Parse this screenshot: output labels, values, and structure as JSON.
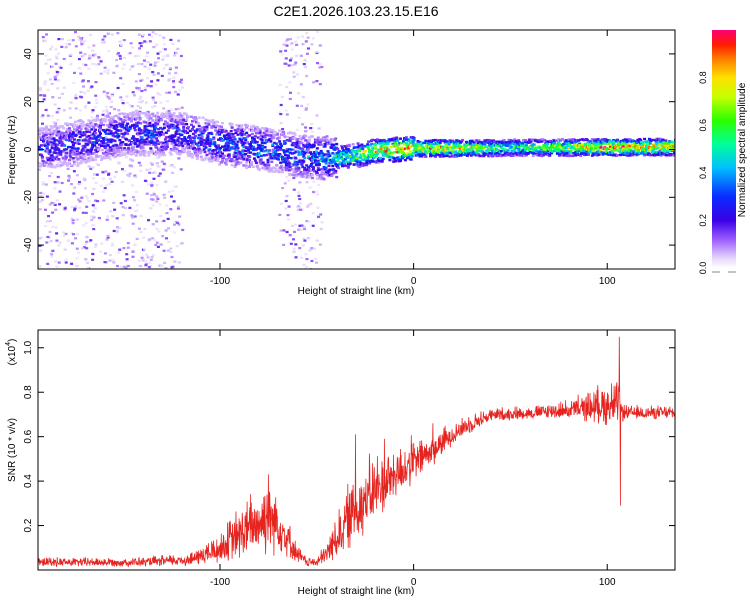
{
  "title": "C2E1.2026.103.23.15.E16",
  "colors": {
    "snr_line": "#e52420",
    "axis": "#000000"
  },
  "chart_data": [
    {
      "type": "heatmap",
      "name": "spectrogram",
      "xlabel": "Height of straight line (km)",
      "ylabel": "Frequency (Hz)",
      "xlim": [
        -194,
        135
      ],
      "ylim": [
        -50,
        50
      ],
      "x_ticks": [
        -100,
        0,
        100
      ],
      "x_tick_labels": [
        "-100",
        "0",
        "100"
      ],
      "y_ticks": [
        -40,
        -20,
        0,
        20,
        40
      ],
      "y_tick_labels": [
        "-40",
        "-20",
        "0",
        "20",
        "40"
      ],
      "colorbar": {
        "label": "Normalized spectral amplitude",
        "range": [
          0,
          1
        ],
        "ticks": [
          0.0,
          0.2,
          0.4,
          0.6,
          0.8
        ],
        "tick_labels": [
          "0.0",
          "0.2",
          "0.4",
          "0.6",
          "0.8"
        ]
      },
      "trend": {
        "x": [
          -190,
          -150,
          -120,
          -100,
          -80,
          -60,
          -50,
          -40,
          -30,
          -20,
          -10,
          0,
          20,
          50,
          80,
          100,
          135
        ],
        "center_hz": [
          1,
          7,
          7,
          3,
          1,
          -2,
          -3,
          -3,
          -2,
          0,
          0.5,
          1,
          1,
          1.2,
          1.3,
          1.4,
          1.5
        ],
        "amplitude": [
          0.3,
          0.35,
          0.32,
          0.38,
          0.4,
          0.4,
          0.45,
          0.55,
          0.7,
          0.85,
          0.95,
          0.95,
          0.9,
          0.6,
          0.75,
          0.95,
          0.85
        ],
        "scatter_regions": [
          {
            "x_range": [
              -194,
              -120
            ],
            "density": 1.0
          },
          {
            "x_range": [
              -70,
              -48
            ],
            "density": 0.8
          }
        ]
      }
    },
    {
      "type": "line",
      "name": "snr",
      "xlabel": "Height of straight line (km)",
      "ylabel": "SNR (10 * v/v)",
      "y_multiplier_label": "(x10",
      "y_multiplier_exp": "4",
      "xlim": [
        -194,
        135
      ],
      "ylim": [
        0,
        1.08
      ],
      "x_ticks": [
        -100,
        0,
        100
      ],
      "x_tick_labels": [
        "-100",
        "0",
        "100"
      ],
      "y_ticks": [
        0.2,
        0.4,
        0.6,
        0.8,
        1.0
      ],
      "y_tick_labels": [
        "0.2",
        "0.4",
        "0.6",
        "0.8",
        "1.0"
      ],
      "envelope": {
        "x": [
          -194,
          -140,
          -115,
          -100,
          -90,
          -80,
          -75,
          -70,
          -65,
          -60,
          -55,
          -50,
          -45,
          -40,
          -35,
          -30,
          -25,
          -20,
          -10,
          0,
          10,
          20,
          30,
          40,
          60,
          80,
          95,
          100,
          105,
          106,
          107,
          110,
          120,
          135
        ],
        "mean": [
          0.03,
          0.03,
          0.04,
          0.08,
          0.13,
          0.18,
          0.2,
          0.18,
          0.12,
          0.06,
          0.03,
          0.03,
          0.06,
          0.12,
          0.18,
          0.24,
          0.28,
          0.32,
          0.4,
          0.46,
          0.52,
          0.6,
          0.65,
          0.69,
          0.7,
          0.71,
          0.72,
          0.72,
          0.72,
          0.72,
          0.7,
          0.7,
          0.7,
          0.7
        ],
        "amp": [
          0.02,
          0.02,
          0.03,
          0.07,
          0.12,
          0.15,
          0.18,
          0.14,
          0.08,
          0.04,
          0.02,
          0.02,
          0.05,
          0.1,
          0.14,
          0.16,
          0.16,
          0.15,
          0.12,
          0.1,
          0.07,
          0.05,
          0.04,
          0.03,
          0.03,
          0.04,
          0.08,
          0.1,
          0.1,
          0.08,
          0.05,
          0.03,
          0.03,
          0.03
        ]
      },
      "spikes": [
        {
          "x": 106.2,
          "y": 1.05
        },
        {
          "x": 106.7,
          "y": 0.29
        },
        {
          "x": 103.5,
          "y": 0.83
        },
        {
          "x": -75,
          "y": 0.43
        },
        {
          "x": -30,
          "y": 0.61
        },
        {
          "x": -15,
          "y": 0.59
        },
        {
          "x": 10,
          "y": 0.66
        }
      ]
    }
  ]
}
